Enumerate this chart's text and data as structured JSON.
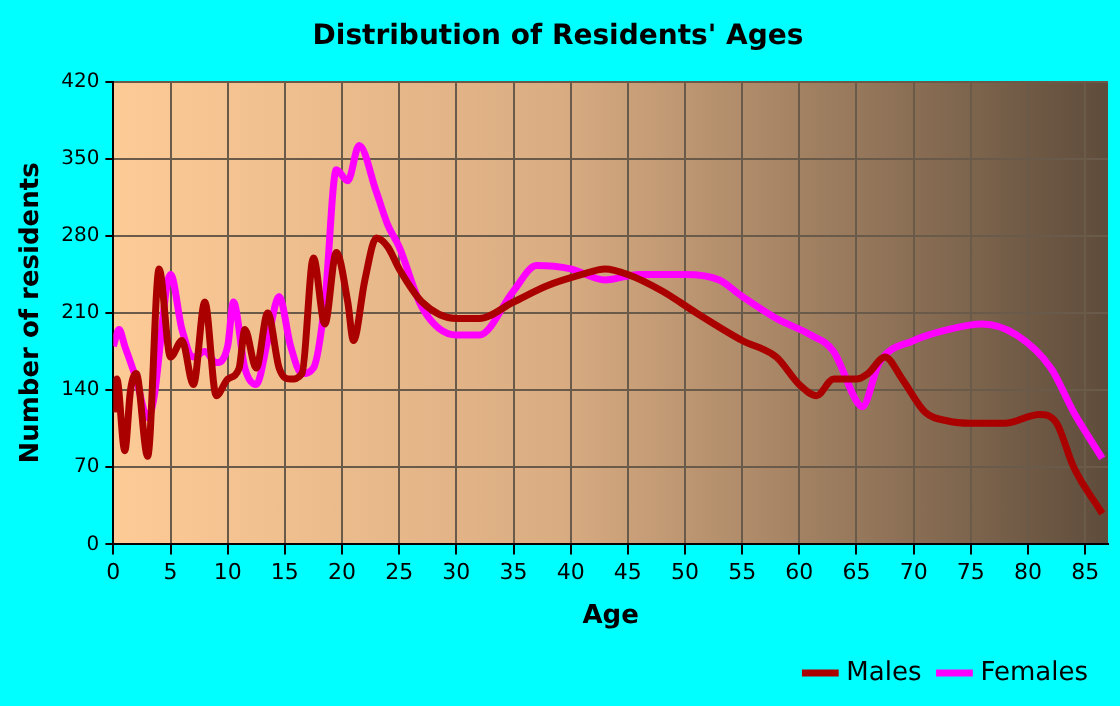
{
  "chart_data": {
    "type": "line",
    "title": "Distribution of Residents' Ages",
    "xlabel": "Age",
    "ylabel": "Number of residents",
    "xlim": [
      0,
      87
    ],
    "xticks": [
      0,
      5,
      10,
      15,
      20,
      25,
      30,
      35,
      40,
      45,
      50,
      55,
      60,
      65,
      70,
      75,
      80,
      85
    ],
    "ylim": [
      0,
      420
    ],
    "yticks": [
      0,
      70,
      140,
      210,
      280,
      350,
      420
    ],
    "grid": true,
    "legend": "bottom right",
    "marker": "none",
    "line_style": "solid",
    "series": [
      {
        "name": "Males",
        "color": "#aa0000",
        "x": [
          0,
          0.3,
          1,
          1.5,
          2,
          3,
          4,
          5,
          6,
          7,
          8,
          9,
          10,
          11,
          11.5,
          12.5,
          13.5,
          14.5,
          15.5,
          16.5,
          17.5,
          18.5,
          19.5,
          20.5,
          21,
          22,
          23,
          24,
          25,
          27,
          30,
          32,
          35,
          38,
          41,
          43,
          45,
          48,
          51,
          55,
          58,
          60,
          61.5,
          63,
          65,
          66,
          67.5,
          69,
          71,
          73,
          75,
          78,
          81,
          82.5,
          84,
          86.5
        ],
        "values": [
          120,
          150,
          85,
          140,
          155,
          80,
          250,
          170,
          185,
          145,
          220,
          135,
          150,
          160,
          195,
          160,
          210,
          160,
          150,
          155,
          260,
          200,
          265,
          220,
          185,
          240,
          278,
          270,
          250,
          220,
          205,
          205,
          220,
          235,
          245,
          250,
          245,
          230,
          210,
          185,
          170,
          145,
          135,
          150,
          150,
          155,
          170,
          150,
          120,
          112,
          110,
          110,
          118,
          110,
          70,
          28
        ]
      },
      {
        "name": "Females",
        "color": "#ff00ff",
        "x": [
          0,
          0.5,
          1,
          2,
          3,
          3.5,
          5,
          6,
          7,
          8,
          9,
          10,
          10.5,
          11.5,
          12.5,
          13.5,
          14.5,
          15.5,
          16.5,
          17.5,
          18.5,
          19.5,
          20.5,
          21.5,
          23,
          24,
          25,
          27,
          30,
          32,
          35,
          37,
          40,
          43,
          46,
          50,
          53,
          55,
          58,
          61,
          63,
          65,
          65.5,
          67,
          70,
          73,
          76,
          79,
          82,
          84,
          86.5
        ],
        "values": [
          180,
          195,
          180,
          150,
          115,
          130,
          245,
          195,
          170,
          175,
          165,
          180,
          220,
          160,
          145,
          185,
          225,
          180,
          155,
          160,
          220,
          340,
          330,
          362,
          320,
          290,
          270,
          215,
          190,
          190,
          230,
          253,
          250,
          240,
          245,
          245,
          240,
          225,
          205,
          190,
          175,
          130,
          125,
          165,
          185,
          195,
          200,
          190,
          160,
          120,
          78
        ]
      }
    ]
  }
}
